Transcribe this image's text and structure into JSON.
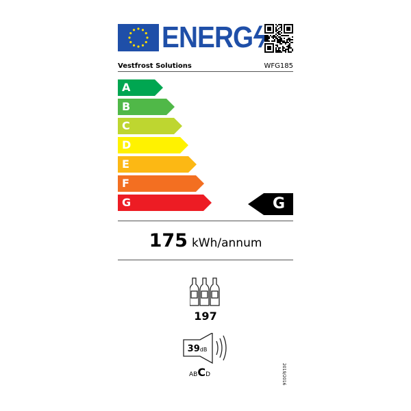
{
  "header": {
    "title": "ENERG",
    "supplier": "Vestfrost Solutions",
    "model": "WFG185"
  },
  "scale": {
    "classes": [
      {
        "letter": "A",
        "color": "#00a651"
      },
      {
        "letter": "B",
        "color": "#50b848"
      },
      {
        "letter": "C",
        "color": "#bed630"
      },
      {
        "letter": "D",
        "color": "#fff200"
      },
      {
        "letter": "E",
        "color": "#fcb814"
      },
      {
        "letter": "F",
        "color": "#f36f21"
      },
      {
        "letter": "G",
        "color": "#ed1c24"
      }
    ],
    "rated_class": "G"
  },
  "consumption": {
    "value": "175",
    "unit": "kWh/annum"
  },
  "capacity": {
    "bottles": "197"
  },
  "noise": {
    "value": "39",
    "unit": "dB",
    "classes": [
      "A",
      "B",
      "C",
      "D"
    ],
    "rated": "C"
  },
  "regulation": "2019/2016"
}
